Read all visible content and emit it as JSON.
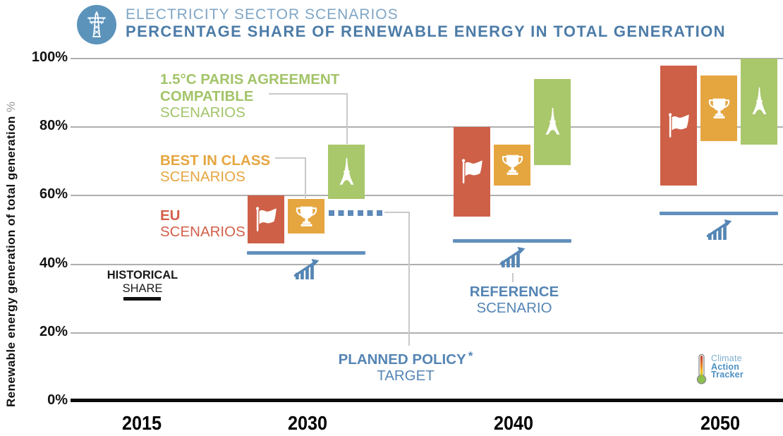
{
  "header": {
    "title_line1": "ELECTRICITY SECTOR SCENARIOS",
    "title_line2": "PERCENTAGE SHARE OF RENEWABLE ENERGY IN TOTAL GENERATION"
  },
  "y_axis": {
    "label": "Renewable energy generation of total generation",
    "label_suffix": "%"
  },
  "legend": {
    "paris": {
      "line1": "1.5°C PARIS AGREEMENT",
      "line2": "COMPATIBLE",
      "line3": "SCENARIOS"
    },
    "best": {
      "line1": "BEST IN CLASS",
      "line2": "SCENARIOS"
    },
    "eu": {
      "line1": "EU",
      "line2": "SCENARIOS"
    },
    "historical": {
      "line1": "HISTORICAL",
      "line2": "SHARE"
    },
    "reference": {
      "line1": "REFERENCE",
      "line2": "SCENARIO"
    },
    "planned": {
      "line1": "PLANNED POLICY",
      "asterisk": "*",
      "line2": "TARGET"
    }
  },
  "logo": {
    "line1": "Climate",
    "line2": "Action",
    "line3": "Tracker"
  },
  "colors": {
    "eu_scenarios": "#CE6048",
    "best_in_class": "#E5A640",
    "paris_compatible": "#A9C76B",
    "reference_scenario": "#6290BD",
    "planned_policy_target": "#5E89B8",
    "historical_share": "#111111",
    "title_light_blue": "#7FA6C6",
    "title_bold_blue": "#4C7CA8",
    "annotation_blue": "#5585B4",
    "brand_circle_blue": "#5B93BB"
  },
  "chart_data": {
    "type": "bar",
    "subtype": "floating-range-bars",
    "title": "Electricity sector scenarios — percentage share of renewable energy in total generation",
    "ylabel": "Renewable energy generation of total generation %",
    "ylim": [
      0,
      100
    ],
    "yticks": [
      0,
      20,
      40,
      60,
      80,
      100
    ],
    "grid": "horizontal",
    "x_categories": [
      "2015",
      "2030",
      "2040",
      "2050"
    ],
    "bar_categories": [
      "2030",
      "2040",
      "2050"
    ],
    "series": [
      {
        "name": "EU scenarios",
        "icon": "flag-icon",
        "color": "#CE6048",
        "ranges_pct": [
          [
            46,
            60
          ],
          [
            54,
            80
          ],
          [
            63,
            98
          ]
        ]
      },
      {
        "name": "Best in class scenarios",
        "icon": "trophy-icon",
        "color": "#E5A640",
        "ranges_pct": [
          [
            49,
            59
          ],
          [
            63,
            75
          ],
          [
            76,
            95
          ]
        ]
      },
      {
        "name": "1.5°C Paris Agreement compatible scenarios",
        "icon": "eiffel-tower-icon",
        "color": "#A9C76B",
        "ranges_pct": [
          [
            59,
            75
          ],
          [
            69,
            94
          ],
          [
            75,
            100
          ]
        ]
      }
    ],
    "reference_scenario": {
      "name": "Reference scenario",
      "color": "#6290BD",
      "values_pct": [
        43.5,
        47,
        55
      ]
    },
    "planned_policy_target": {
      "name": "Planned policy target *",
      "category": "2030",
      "value_pct": 55,
      "style": "dotted"
    },
    "historical_share": {
      "name": "Historical share",
      "category": "2015",
      "value_pct": 30
    }
  }
}
